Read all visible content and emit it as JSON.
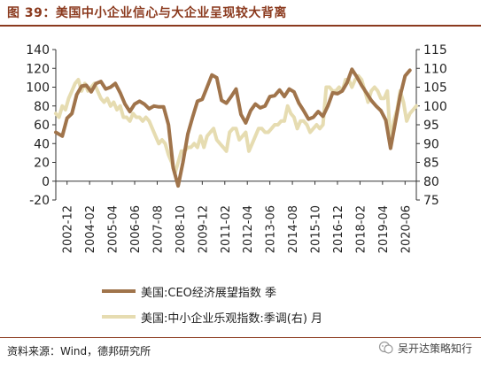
{
  "title": "图 39：美国中小企业信心与大企业呈现较大背离",
  "source": "资料来源：Wind，德邦研究所",
  "watermark": "吴开达策略知行",
  "colors": {
    "ceo": "#A0744B",
    "small": "#E6DCB1",
    "title": "#8B3A1E"
  },
  "chart_data": {
    "type": "line",
    "x_tick_labels": [
      "2002-12",
      "2004-02",
      "2005-04",
      "2006-06",
      "2007-08",
      "2008-10",
      "2009-12",
      "2011-02",
      "2012-04",
      "2013-06",
      "2014-08",
      "2015-10",
      "2016-12",
      "2018-02",
      "2019-04",
      "2020-06"
    ],
    "y_left": {
      "ticks": [
        -20,
        0,
        20,
        40,
        60,
        80,
        100,
        120,
        140
      ],
      "range": [
        -20,
        140
      ]
    },
    "y_right": {
      "ticks": [
        75,
        80,
        85,
        90,
        95,
        100,
        105,
        110,
        115
      ],
      "range": [
        75,
        115
      ]
    },
    "grid": false,
    "legend_position": "bottom",
    "series": [
      {
        "name": "美国:CEO经济展望指数 季",
        "axis": "left",
        "points": [
          [
            2002.917,
            52
          ],
          [
            2003.25,
            48
          ],
          [
            2003.5,
            67
          ],
          [
            2003.75,
            72
          ],
          [
            2004.0,
            92
          ],
          [
            2004.25,
            101
          ],
          [
            2004.5,
            102
          ],
          [
            2004.75,
            95
          ],
          [
            2005.0,
            104
          ],
          [
            2005.25,
            106
          ],
          [
            2005.5,
            98
          ],
          [
            2005.75,
            100
          ],
          [
            2006.0,
            104
          ],
          [
            2006.25,
            94
          ],
          [
            2006.5,
            82
          ],
          [
            2006.75,
            74
          ],
          [
            2007.0,
            82
          ],
          [
            2007.25,
            85
          ],
          [
            2007.5,
            82
          ],
          [
            2007.75,
            77
          ],
          [
            2008.0,
            80
          ],
          [
            2008.25,
            79
          ],
          [
            2008.5,
            79
          ],
          [
            2008.75,
            60
          ],
          [
            2009.0,
            14
          ],
          [
            2009.25,
            -5
          ],
          [
            2009.5,
            20
          ],
          [
            2009.75,
            50
          ],
          [
            2010.0,
            68
          ],
          [
            2010.25,
            85
          ],
          [
            2010.5,
            87
          ],
          [
            2010.75,
            100
          ],
          [
            2011.0,
            113
          ],
          [
            2011.25,
            110
          ],
          [
            2011.5,
            86
          ],
          [
            2011.75,
            83
          ],
          [
            2012.0,
            90
          ],
          [
            2012.25,
            98
          ],
          [
            2012.5,
            71
          ],
          [
            2012.75,
            62
          ],
          [
            2013.0,
            75
          ],
          [
            2013.25,
            82
          ],
          [
            2013.5,
            78
          ],
          [
            2013.75,
            80
          ],
          [
            2014.0,
            90
          ],
          [
            2014.25,
            91
          ],
          [
            2014.5,
            97
          ],
          [
            2014.75,
            90
          ],
          [
            2015.0,
            98
          ],
          [
            2015.25,
            95
          ],
          [
            2015.5,
            83
          ],
          [
            2015.75,
            75
          ],
          [
            2016.0,
            66
          ],
          [
            2016.25,
            68
          ],
          [
            2016.5,
            74
          ],
          [
            2016.75,
            69
          ],
          [
            2017.0,
            80
          ],
          [
            2017.25,
            94
          ],
          [
            2017.5,
            93
          ],
          [
            2017.75,
            96
          ],
          [
            2018.0,
            105
          ],
          [
            2018.25,
            119
          ],
          [
            2018.5,
            111
          ],
          [
            2018.75,
            102
          ],
          [
            2019.0,
            94
          ],
          [
            2019.25,
            86
          ],
          [
            2019.5,
            80
          ],
          [
            2019.75,
            75
          ],
          [
            2020.0,
            65
          ],
          [
            2020.25,
            35
          ],
          [
            2020.5,
            63
          ],
          [
            2020.75,
            91
          ],
          [
            2021.0,
            112
          ],
          [
            2021.25,
            118
          ]
        ]
      },
      {
        "name": "美国:中小企业乐观指数:季调(右) 月",
        "axis": "right",
        "points": [
          [
            2002.917,
            98
          ],
          [
            2003.083,
            97
          ],
          [
            2003.25,
            100
          ],
          [
            2003.417,
            99
          ],
          [
            2003.583,
            102
          ],
          [
            2003.75,
            104
          ],
          [
            2003.917,
            106
          ],
          [
            2004.083,
            107
          ],
          [
            2004.25,
            104
          ],
          [
            2004.417,
            106
          ],
          [
            2004.583,
            104
          ],
          [
            2004.75,
            105
          ],
          [
            2004.917,
            106
          ],
          [
            2005.083,
            104
          ],
          [
            2005.25,
            102
          ],
          [
            2005.417,
            101
          ],
          [
            2005.583,
            102
          ],
          [
            2005.75,
            100
          ],
          [
            2005.917,
            101
          ],
          [
            2006.083,
            99
          ],
          [
            2006.25,
            100
          ],
          [
            2006.417,
            97
          ],
          [
            2006.583,
            97
          ],
          [
            2006.75,
            96
          ],
          [
            2006.917,
            98
          ],
          [
            2007.083,
            97
          ],
          [
            2007.25,
            97
          ],
          [
            2007.417,
            96
          ],
          [
            2007.583,
            97
          ],
          [
            2007.75,
            96
          ],
          [
            2007.917,
            94
          ],
          [
            2008.083,
            92
          ],
          [
            2008.25,
            90
          ],
          [
            2008.417,
            91
          ],
          [
            2008.583,
            90
          ],
          [
            2008.75,
            87
          ],
          [
            2008.917,
            85
          ],
          [
            2009.083,
            82
          ],
          [
            2009.25,
            85
          ],
          [
            2009.417,
            88
          ],
          [
            2009.583,
            88
          ],
          [
            2009.75,
            89
          ],
          [
            2009.917,
            89
          ],
          [
            2010.083,
            90
          ],
          [
            2010.25,
            89
          ],
          [
            2010.417,
            92
          ],
          [
            2010.583,
            89
          ],
          [
            2010.75,
            92
          ],
          [
            2010.917,
            93
          ],
          [
            2011.083,
            94
          ],
          [
            2011.25,
            91
          ],
          [
            2011.417,
            90
          ],
          [
            2011.583,
            89
          ],
          [
            2011.75,
            88
          ],
          [
            2011.917,
            93
          ],
          [
            2012.083,
            94
          ],
          [
            2012.25,
            94
          ],
          [
            2012.417,
            91
          ],
          [
            2012.583,
            92
          ],
          [
            2012.75,
            93
          ],
          [
            2012.917,
            88
          ],
          [
            2013.083,
            90
          ],
          [
            2013.25,
            92
          ],
          [
            2013.417,
            94
          ],
          [
            2013.583,
            94
          ],
          [
            2013.75,
            93
          ],
          [
            2013.917,
            93
          ],
          [
            2014.083,
            94
          ],
          [
            2014.25,
            95
          ],
          [
            2014.417,
            95
          ],
          [
            2014.583,
            96
          ],
          [
            2014.75,
            96
          ],
          [
            2014.917,
            100
          ],
          [
            2015.083,
            98
          ],
          [
            2015.25,
            97
          ],
          [
            2015.417,
            94
          ],
          [
            2015.583,
            96
          ],
          [
            2015.75,
            96
          ],
          [
            2015.917,
            95
          ],
          [
            2016.083,
            93
          ],
          [
            2016.25,
            94
          ],
          [
            2016.417,
            95
          ],
          [
            2016.583,
            94
          ],
          [
            2016.75,
            95
          ],
          [
            2016.917,
            105
          ],
          [
            2017.083,
            105
          ],
          [
            2017.25,
            104
          ],
          [
            2017.417,
            104
          ],
          [
            2017.583,
            105
          ],
          [
            2017.75,
            104
          ],
          [
            2017.917,
            107
          ],
          [
            2018.083,
            107
          ],
          [
            2018.25,
            105
          ],
          [
            2018.417,
            107
          ],
          [
            2018.583,
            108
          ],
          [
            2018.75,
            107
          ],
          [
            2018.917,
            104
          ],
          [
            2019.083,
            101
          ],
          [
            2019.25,
            104
          ],
          [
            2019.417,
            105
          ],
          [
            2019.583,
            104
          ],
          [
            2019.75,
            102
          ],
          [
            2019.917,
            102
          ],
          [
            2020.083,
            104
          ],
          [
            2020.25,
            90
          ],
          [
            2020.417,
            96
          ],
          [
            2020.583,
            99
          ],
          [
            2020.75,
            104
          ],
          [
            2020.917,
            101
          ],
          [
            2021.083,
            96
          ],
          [
            2021.25,
            98
          ],
          [
            2021.417,
            99
          ],
          [
            2021.583,
            100
          ]
        ]
      }
    ]
  }
}
